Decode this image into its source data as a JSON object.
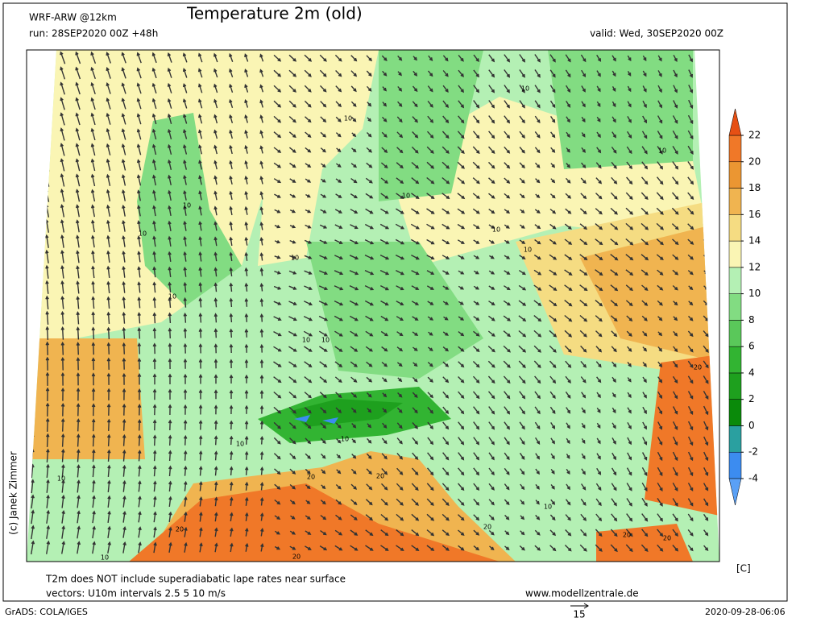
{
  "header": {
    "model": "WRF-ARW @12km",
    "title": "Temperature 2m (old)",
    "run": "run: 28SEP2020 00Z +48h",
    "valid": "valid: Wed, 30SEP2020 00Z"
  },
  "colorbar": {
    "levels": [
      -4,
      -2,
      0,
      2,
      4,
      6,
      8,
      10,
      12,
      14,
      16,
      18,
      20,
      22
    ],
    "colors": [
      "#5aa0f5",
      "#3c8cf0",
      "#2aa0a0",
      "#0a8a0a",
      "#1ea01e",
      "#32b432",
      "#5ac85a",
      "#82dc82",
      "#b4f0b4",
      "#faf5b4",
      "#f5dc82",
      "#f0b450",
      "#eb9632",
      "#f07828",
      "#e65014"
    ],
    "unit": "[C]"
  },
  "contour_labels": [
    10,
    10,
    10,
    10,
    10,
    10,
    10,
    10,
    10,
    10,
    10,
    10,
    10,
    10,
    10,
    10,
    10,
    20,
    20,
    20,
    20,
    20,
    20,
    20,
    20
  ],
  "credit": "(c) Janek Zimmer",
  "footer": {
    "note": "T2m does NOT include superadiabatic lape rates near surface",
    "vectors": "vectors: U10m intervals 2.5 5 10 m/s",
    "site": "www.modellzentrale.de",
    "grads": "GrADS: COLA/IGES",
    "reference_vector": "15",
    "timestamp": "2020-09-28-06:06"
  }
}
